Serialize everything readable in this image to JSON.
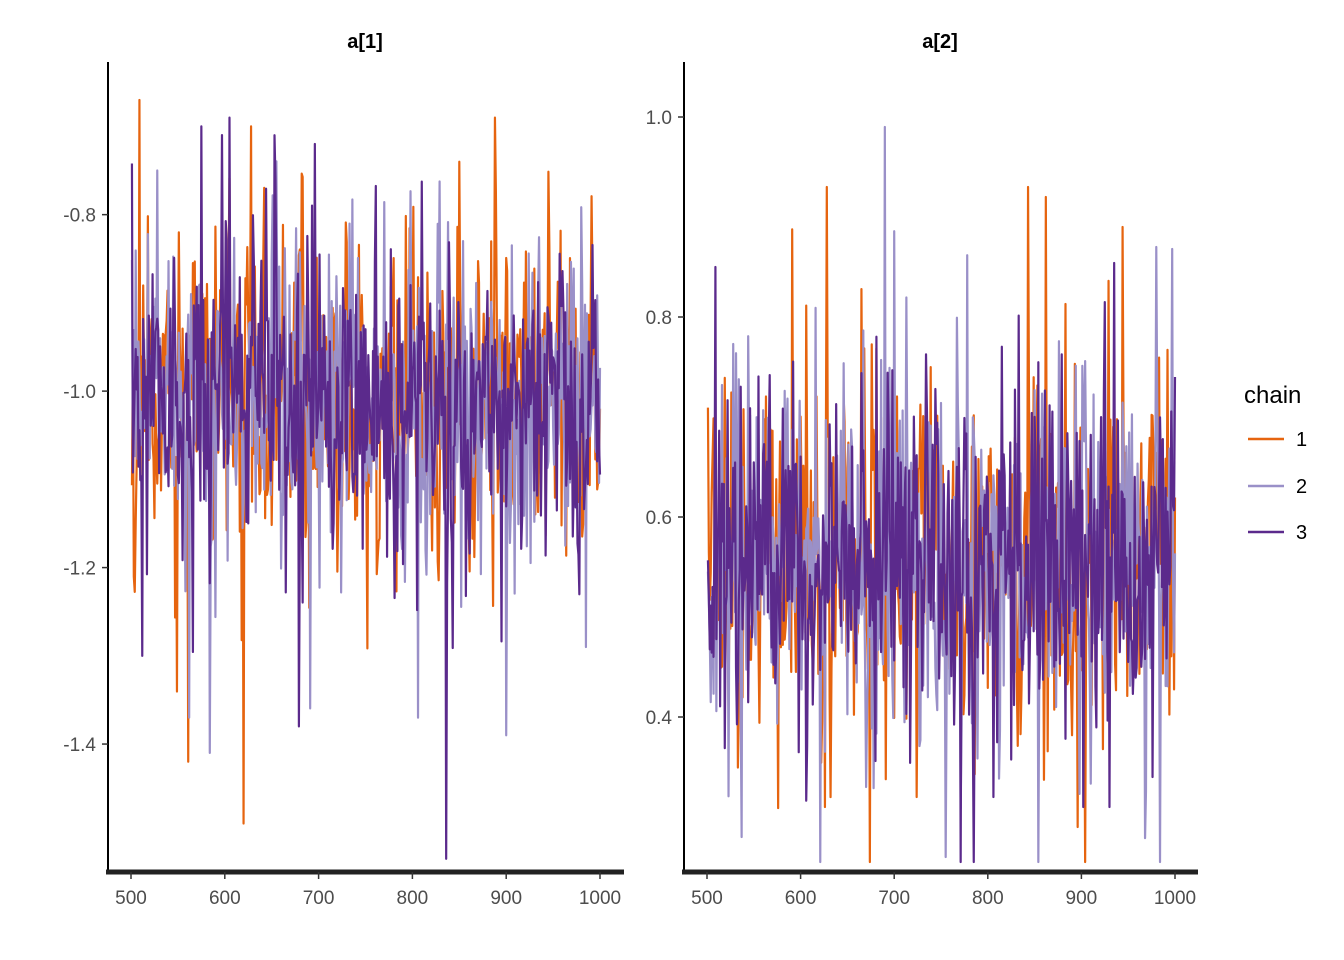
{
  "chart_data": [
    {
      "type": "line",
      "title": "a[1]",
      "xlim": [
        500,
        1000
      ],
      "ylim": [
        -1.545,
        -0.627
      ],
      "x_ticks": [
        500,
        600,
        700,
        800,
        900,
        1000
      ],
      "x_tick_labels": [
        "500",
        "600",
        "700",
        "800",
        "900",
        "1000"
      ],
      "y_ticks": [
        -0.8,
        -1.0,
        -1.2,
        -1.4
      ],
      "y_tick_labels": [
        "-0.8",
        "-1.0",
        "-1.2",
        "-1.4"
      ],
      "grid": false,
      "x": {
        "start": 501,
        "end": 1000,
        "step": 1
      },
      "series": [
        {
          "name": "1",
          "color": "#e6640f",
          "mean": -1.01,
          "sd": 0.085,
          "seed": 11,
          "extremes": [
            [
              509,
              -0.67
            ],
            [
              561,
              -1.42
            ],
            [
              620,
              -1.49
            ],
            [
              628,
              -0.7
            ],
            [
              888,
              -0.69
            ],
            [
              850,
              -0.74
            ],
            [
              503,
              -1.21
            ]
          ]
        },
        {
          "name": "2",
          "color": "#9a90c8",
          "mean": -1.02,
          "sd": 0.085,
          "seed": 23,
          "extremes": [
            [
              562,
              -1.37
            ],
            [
              584,
              -1.41
            ],
            [
              806,
              -1.37
            ],
            [
              900,
              -1.39
            ],
            [
              985,
              -1.29
            ],
            [
              528,
              -0.75
            ]
          ]
        },
        {
          "name": "3",
          "color": "#5b2a8c",
          "mean": -1.01,
          "sd": 0.08,
          "seed": 37,
          "extremes": [
            [
              836,
              -1.53
            ],
            [
              605,
              -0.69
            ],
            [
              575,
              -0.7
            ],
            [
              679,
              -1.38
            ],
            [
              512,
              -1.3
            ],
            [
              653,
              -0.71
            ]
          ]
        }
      ]
    },
    {
      "type": "line",
      "title": "a[2]",
      "xlim": [
        500,
        1000
      ],
      "ylim": [
        0.245,
        1.055
      ],
      "x_ticks": [
        500,
        600,
        700,
        800,
        900,
        1000
      ],
      "x_tick_labels": [
        "500",
        "600",
        "700",
        "800",
        "900",
        "1000"
      ],
      "y_ticks": [
        1.0,
        0.8,
        0.6,
        0.4
      ],
      "y_tick_labels": [
        "1.0",
        "0.8",
        "0.6",
        "0.4"
      ],
      "grid": false,
      "x": {
        "start": 501,
        "end": 1000,
        "step": 1
      },
      "series": [
        {
          "name": "1",
          "color": "#e6640f",
          "mean": 0.56,
          "sd": 0.085,
          "seed": 51,
          "extremes": [
            [
              628,
              0.93
            ],
            [
              843,
              0.93
            ],
            [
              862,
              0.92
            ],
            [
              944,
              0.89
            ],
            [
              896,
              0.29
            ],
            [
              626,
              0.31
            ],
            [
              724,
              0.32
            ]
          ]
        },
        {
          "name": "2",
          "color": "#9a90c8",
          "mean": 0.56,
          "sd": 0.085,
          "seed": 67,
          "extremes": [
            [
              690,
              0.99
            ],
            [
              755,
              0.26
            ],
            [
              537,
              0.28
            ],
            [
              670,
              0.33
            ],
            [
              980,
              0.87
            ]
          ]
        },
        {
          "name": "3",
          "color": "#5b2a8c",
          "mean": 0.56,
          "sd": 0.08,
          "seed": 83,
          "extremes": [
            [
              509,
              0.85
            ],
            [
              1000,
              0.74
            ],
            [
              902,
              0.31
            ],
            [
              930,
              0.31
            ],
            [
              976,
              0.34
            ],
            [
              806,
              0.32
            ]
          ]
        }
      ]
    }
  ],
  "legend": {
    "title": "chain",
    "position": "right",
    "items": [
      {
        "label": "1",
        "color": "#e6640f"
      },
      {
        "label": "2",
        "color": "#9a90c8"
      },
      {
        "label": "3",
        "color": "#5b2a8c"
      }
    ]
  }
}
